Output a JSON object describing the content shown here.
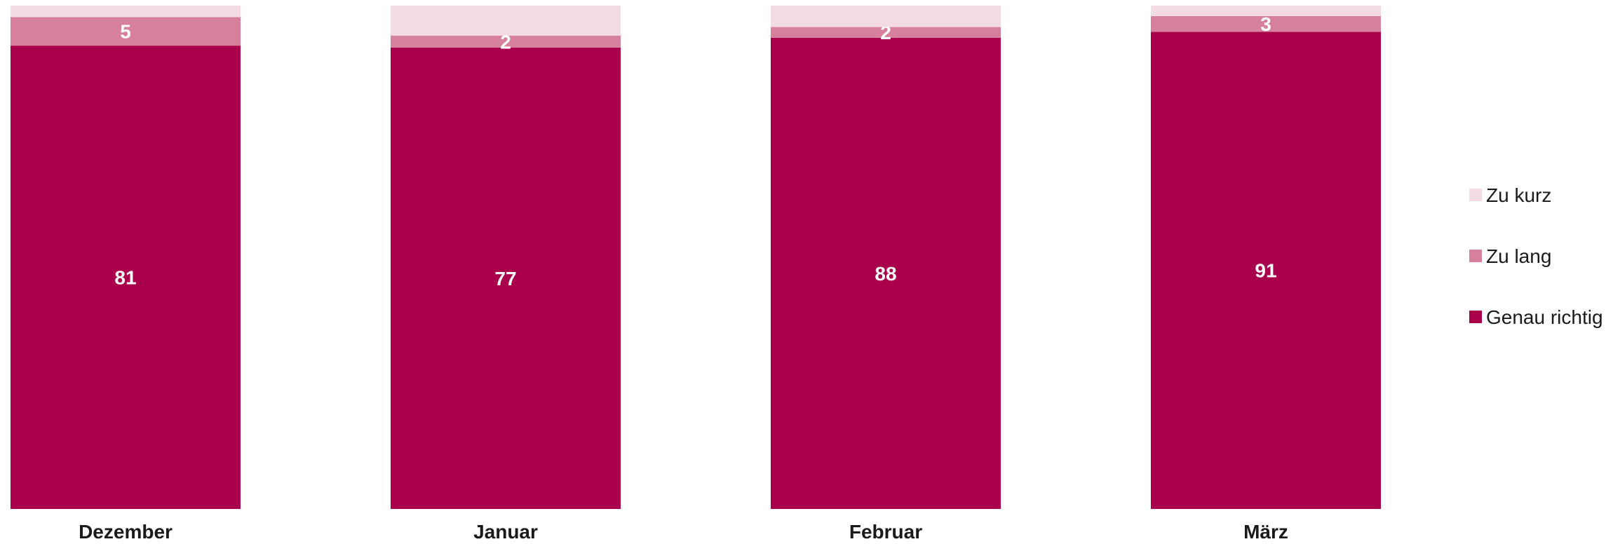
{
  "chart_data": {
    "type": "bar",
    "stacked": true,
    "normalized_to_percent": true,
    "categories": [
      "Dezember",
      "Januar",
      "Februar",
      "März"
    ],
    "series": [
      {
        "name": "Genau richtig",
        "values": [
          81,
          77,
          88,
          91
        ],
        "color": "#a8004a",
        "labels": [
          "81",
          "77",
          "88",
          "91"
        ]
      },
      {
        "name": "Zu lang",
        "values": [
          5,
          2,
          2,
          3
        ],
        "color": "#d6809c",
        "labels": [
          "5",
          "2",
          "2",
          "3"
        ]
      },
      {
        "name": "Zu kurz",
        "values": [
          2,
          5,
          4,
          2
        ],
        "color": "#f2dbe2",
        "labels": [
          "",
          "",
          "",
          ""
        ]
      }
    ],
    "legend": {
      "position": "right",
      "order": [
        "Zu kurz",
        "Zu lang",
        "Genau richtig"
      ]
    },
    "ylim": [
      0,
      100
    ],
    "grid": false
  }
}
